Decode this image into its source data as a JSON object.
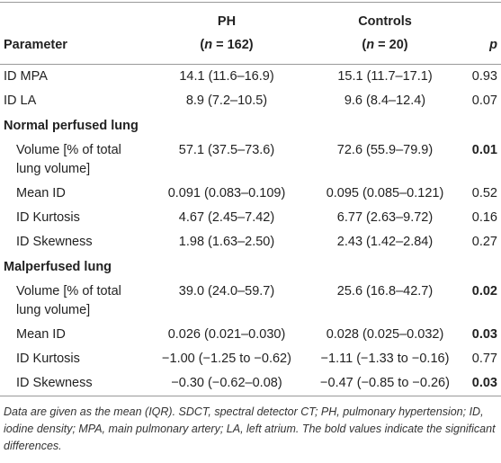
{
  "table": {
    "header": {
      "parameter": "Parameter",
      "ph": "PH",
      "ph_n": [
        "(",
        "n",
        " = 162)"
      ],
      "controls": "Controls",
      "controls_n": [
        "(",
        "n",
        " = 20)"
      ],
      "p": "p"
    },
    "rows": [
      {
        "label": "ID MPA",
        "ph": "14.1 (11.6–16.9)",
        "controls": "15.1 (11.7–17.1)",
        "p": "0.93",
        "bold": false
      },
      {
        "label": "ID LA",
        "ph": "8.9 (7.2–10.5)",
        "controls": "9.6 (8.4–12.4)",
        "p": "0.07",
        "bold": false
      }
    ],
    "sections": [
      {
        "title": "Normal perfused lung",
        "rows": [
          {
            "label": "Volume [% of total lung volume]",
            "ph": "57.1 (37.5–73.6)",
            "controls": "72.6 (55.9–79.9)",
            "p": "0.01",
            "bold": true
          },
          {
            "label": "Mean ID",
            "ph": "0.091 (0.083–0.109)",
            "controls": "0.095 (0.085–0.121)",
            "p": "0.52",
            "bold": false
          },
          {
            "label": "ID Kurtosis",
            "ph": "4.67 (2.45–7.42)",
            "controls": "6.77 (2.63–9.72)",
            "p": "0.16",
            "bold": false
          },
          {
            "label": "ID Skewness",
            "ph": "1.98 (1.63–2.50)",
            "controls": "2.43 (1.42–2.84)",
            "p": "0.27",
            "bold": false
          }
        ]
      },
      {
        "title": "Malperfused lung",
        "rows": [
          {
            "label": "Volume [% of total lung volume]",
            "ph": "39.0 (24.0–59.7)",
            "controls": "25.6 (16.8–42.7)",
            "p": "0.02",
            "bold": true
          },
          {
            "label": "Mean ID",
            "ph": "0.026 (0.021–0.030)",
            "controls": "0.028 (0.025–0.032)",
            "p": "0.03",
            "bold": true
          },
          {
            "label": "ID Kurtosis",
            "ph": "−1.00 (−1.25 to −0.62)",
            "controls": "−1.11 (−1.33 to −0.16)",
            "p": "0.77",
            "bold": false
          },
          {
            "label": "ID Skewness",
            "ph": "−0.30 (−0.62–0.08)",
            "controls": "−0.47 (−0.85 to −0.26)",
            "p": "0.03",
            "bold": true
          }
        ]
      }
    ],
    "footnote": "Data are given as the mean (IQR). SDCT, spectral detector CT; PH, pulmonary hypertension; ID, iodine density; MPA, main pulmonary artery; LA, left atrium. The bold values indicate the significant differences."
  }
}
